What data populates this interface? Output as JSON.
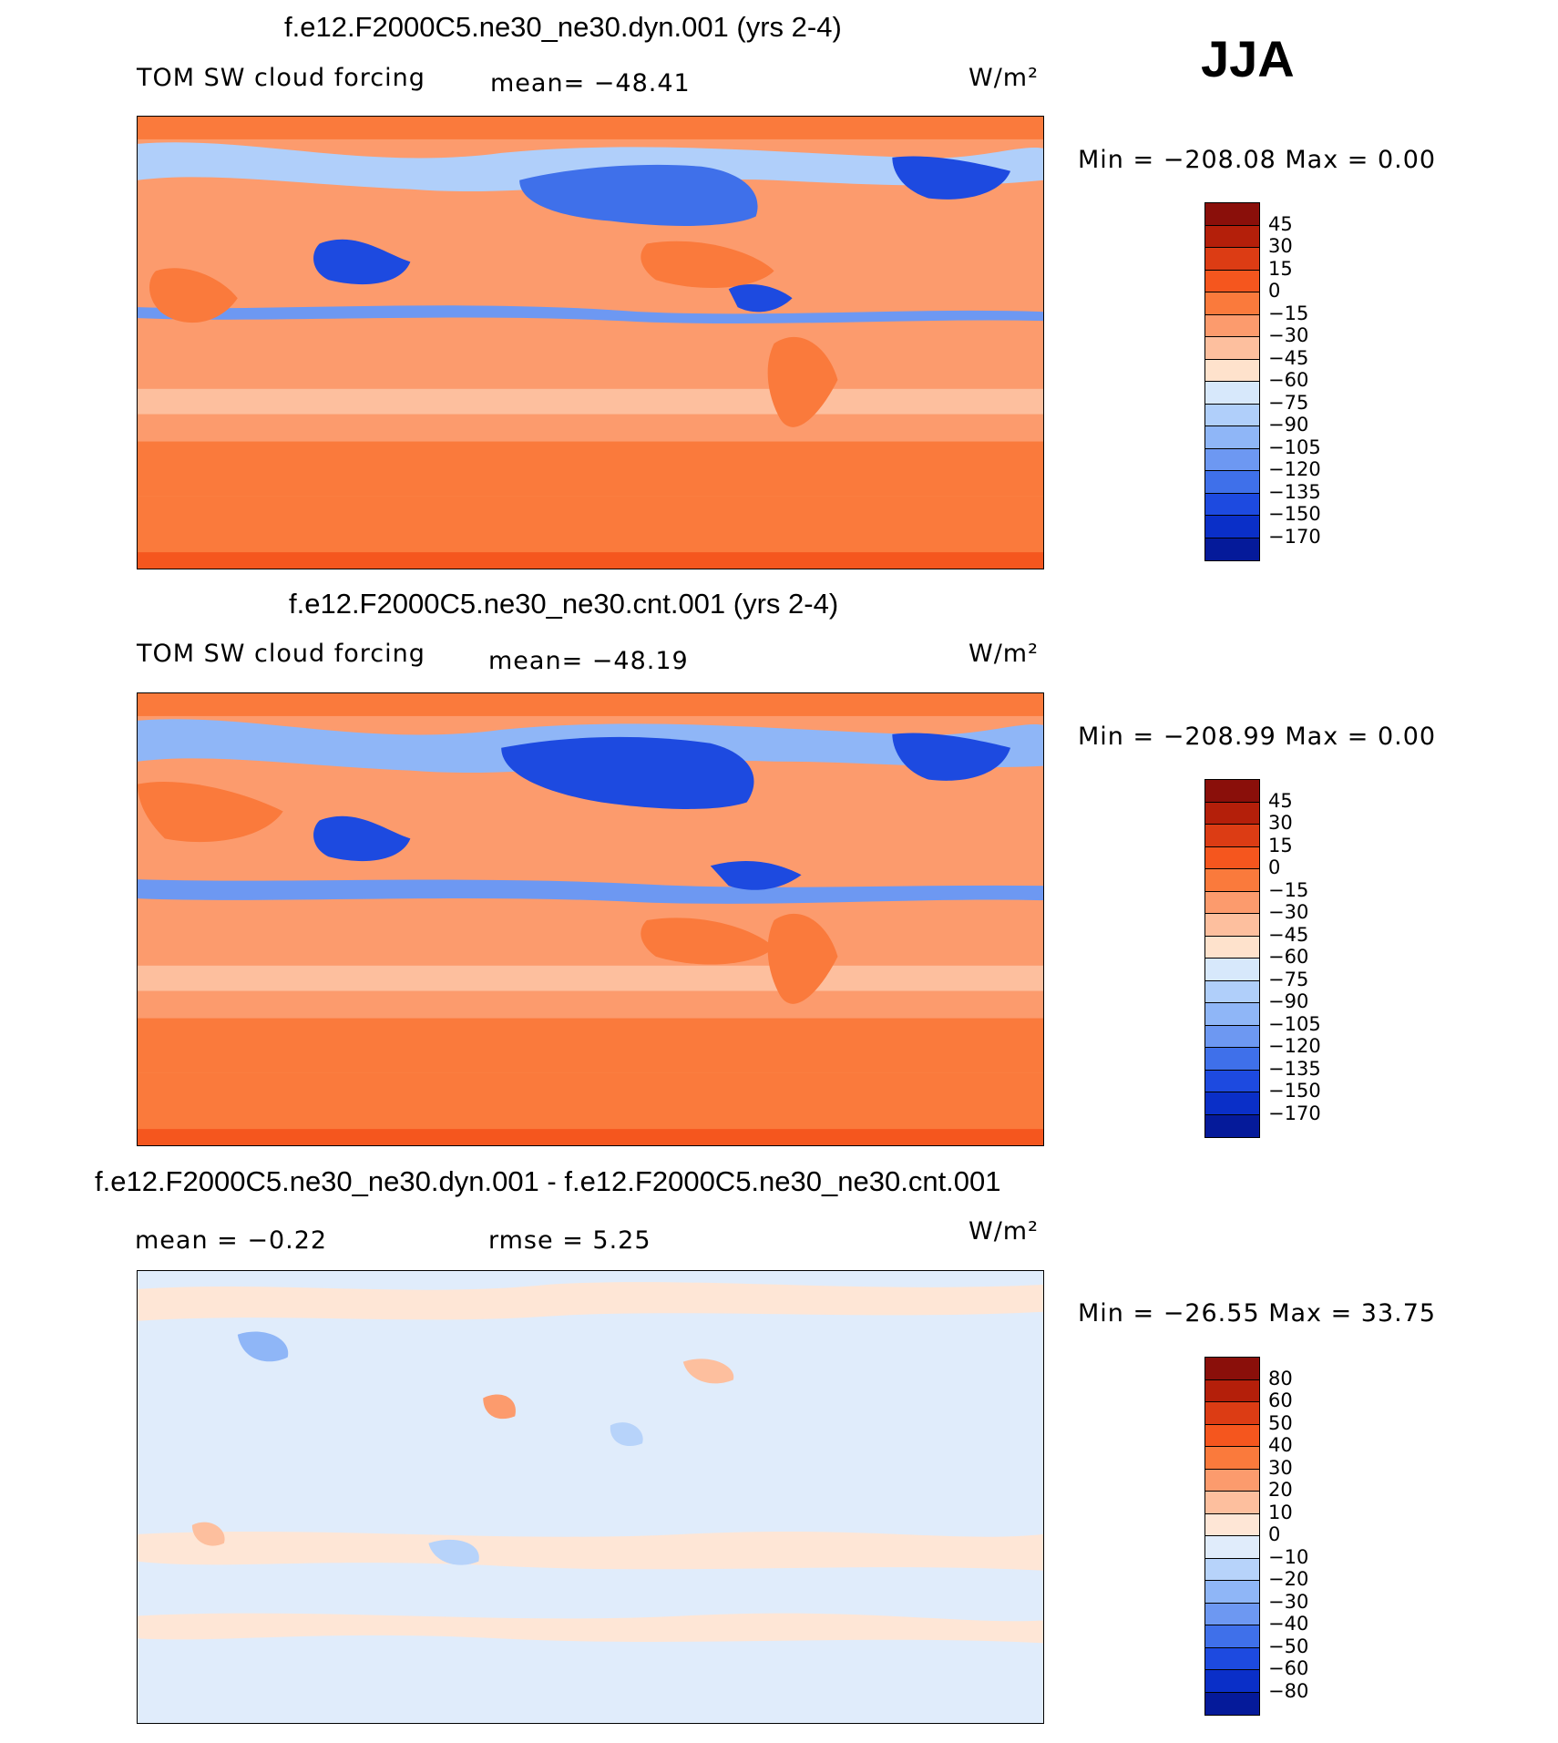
{
  "season": "JJA",
  "units": "W/m²",
  "panels": [
    {
      "title": "f.e12.F2000C5.ne30_ne30.dyn.001 (yrs 2-4)",
      "variable": "TOM SW cloud forcing",
      "stat": "mean= −48.41",
      "minmax": "Min = −208.08 Max =    0.00",
      "levels": [
        "45",
        "30",
        "15",
        "0",
        "−15",
        "−30",
        "−45",
        "−60",
        "−75",
        "−90",
        "−105",
        "−120",
        "−135",
        "−150",
        "−170"
      ],
      "colors": [
        "#8a0f0a",
        "#b41f0a",
        "#dc3c14",
        "#f5561e",
        "#fa7a3c",
        "#fc9b6d",
        "#fdbf9e",
        "#fee2cc",
        "#d7e8fb",
        "#b0cffa",
        "#8fb6f7",
        "#6d98f2",
        "#3f70ea",
        "#1d4ae0",
        "#0a2fc8",
        "#051a9a"
      ]
    },
    {
      "title": "f.e12.F2000C5.ne30_ne30.cnt.001 (yrs 2-4)",
      "variable": "TOM SW cloud forcing",
      "stat": "mean= −48.19",
      "minmax": "Min = −208.99 Max =    0.00",
      "levels": [
        "45",
        "30",
        "15",
        "0",
        "−15",
        "−30",
        "−45",
        "−60",
        "−75",
        "−90",
        "−105",
        "−120",
        "−135",
        "−150",
        "−170"
      ],
      "colors": [
        "#8a0f0a",
        "#b41f0a",
        "#dc3c14",
        "#f5561e",
        "#fa7a3c",
        "#fc9b6d",
        "#fdbf9e",
        "#fee2cc",
        "#d7e8fb",
        "#b0cffa",
        "#8fb6f7",
        "#6d98f2",
        "#3f70ea",
        "#1d4ae0",
        "#0a2fc8",
        "#051a9a"
      ]
    },
    {
      "title": "f.e12.F2000C5.ne30_ne30.dyn.001 - f.e12.F2000C5.ne30_ne30.cnt.001",
      "stat_mean": "mean =   −0.22",
      "stat_rmse": "rmse =    5.25",
      "minmax": "Min = −26.55 Max =   33.75",
      "levels": [
        "80",
        "60",
        "50",
        "40",
        "30",
        "20",
        "10",
        "0",
        "−10",
        "−20",
        "−30",
        "−40",
        "−50",
        "−60",
        "−80"
      ],
      "colors": [
        "#8a0f0a",
        "#b41f0a",
        "#dc3c14",
        "#f5561e",
        "#fa7a3c",
        "#fc9b6d",
        "#fdbf9e",
        "#fee6d6",
        "#e0ecfb",
        "#b7d3fa",
        "#8fb6f7",
        "#6d98f2",
        "#3f70ea",
        "#1d4ae0",
        "#0a2fc8",
        "#051a9a"
      ]
    }
  ]
}
